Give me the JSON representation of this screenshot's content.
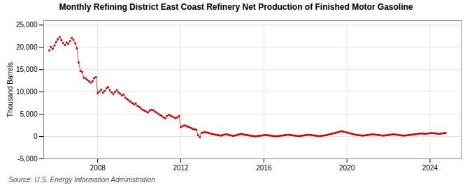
{
  "chart_data": {
    "type": "line",
    "title": "Monthly Refining District East Coast Refinery Net Production of Finished Motor Gasoline",
    "ylabel": "Thousand Barrels",
    "source": "Source: U.S. Energy Information Administration",
    "color": "#cc0000",
    "marker": "square",
    "line_style": "solid",
    "grid": true,
    "xlim": [
      2005.4,
      2025.5
    ],
    "xticks": [
      2008,
      2012,
      2016,
      2020,
      2024
    ],
    "ylim": [
      -5000,
      26000
    ],
    "yticks": [
      {
        "value": -5000,
        "label": "-5,000"
      },
      0,
      {
        "value": 5000,
        "label": "5,000"
      },
      {
        "value": 10000,
        "label": "10,000"
      },
      {
        "value": 15000,
        "label": "15,000"
      },
      {
        "value": 20000,
        "label": "20,000"
      },
      {
        "value": 25000,
        "label": "25,000"
      }
    ],
    "x": [
      2005.67,
      2005.75,
      2005.83,
      2005.92,
      2006.0,
      2006.08,
      2006.17,
      2006.25,
      2006.33,
      2006.42,
      2006.5,
      2006.58,
      2006.67,
      2006.75,
      2006.83,
      2006.92,
      2007.0,
      2007.08,
      2007.17,
      2007.25,
      2007.33,
      2007.42,
      2007.5,
      2007.58,
      2007.67,
      2007.75,
      2007.83,
      2007.92,
      2008.0,
      2008.08,
      2008.17,
      2008.25,
      2008.33,
      2008.42,
      2008.5,
      2008.58,
      2008.67,
      2008.75,
      2008.83,
      2008.92,
      2009.0,
      2009.08,
      2009.17,
      2009.25,
      2009.33,
      2009.42,
      2009.5,
      2009.58,
      2009.67,
      2009.75,
      2009.83,
      2009.92,
      2010.0,
      2010.08,
      2010.17,
      2010.25,
      2010.33,
      2010.42,
      2010.5,
      2010.58,
      2010.67,
      2010.75,
      2010.83,
      2010.92,
      2011.0,
      2011.08,
      2011.17,
      2011.25,
      2011.33,
      2011.42,
      2011.5,
      2011.58,
      2011.67,
      2011.75,
      2011.83,
      2011.92,
      2012.0,
      2012.08,
      2012.17,
      2012.25,
      2012.33,
      2012.42,
      2012.5,
      2012.58,
      2012.67,
      2012.75,
      2012.83,
      2012.92,
      2013.0,
      2013.08,
      2013.17,
      2013.25,
      2013.33,
      2013.42,
      2013.5,
      2013.58,
      2013.67,
      2013.75,
      2013.83,
      2013.92,
      2014.0,
      2014.08,
      2014.17,
      2014.25,
      2014.33,
      2014.42,
      2014.5,
      2014.58,
      2014.67,
      2014.75,
      2014.83,
      2014.92,
      2015.0,
      2015.08,
      2015.17,
      2015.25,
      2015.33,
      2015.42,
      2015.5,
      2015.58,
      2015.67,
      2015.75,
      2015.83,
      2015.92,
      2016.0,
      2016.08,
      2016.17,
      2016.25,
      2016.33,
      2016.42,
      2016.5,
      2016.58,
      2016.67,
      2016.75,
      2016.83,
      2016.92,
      2017.0,
      2017.08,
      2017.17,
      2017.25,
      2017.33,
      2017.42,
      2017.5,
      2017.58,
      2017.67,
      2017.75,
      2017.83,
      2017.92,
      2018.0,
      2018.08,
      2018.17,
      2018.25,
      2018.33,
      2018.42,
      2018.5,
      2018.58,
      2018.67,
      2018.75,
      2018.83,
      2018.92,
      2019.0,
      2019.08,
      2019.17,
      2019.25,
      2019.33,
      2019.42,
      2019.5,
      2019.58,
      2019.67,
      2019.75,
      2019.83,
      2019.92,
      2020.0,
      2020.08,
      2020.17,
      2020.25,
      2020.33,
      2020.42,
      2020.5,
      2020.58,
      2020.67,
      2020.75,
      2020.83,
      2020.92,
      2021.0,
      2021.08,
      2021.17,
      2021.25,
      2021.33,
      2021.42,
      2021.5,
      2021.58,
      2021.67,
      2021.75,
      2021.83,
      2021.92,
      2022.0,
      2022.08,
      2022.17,
      2022.25,
      2022.33,
      2022.42,
      2022.5,
      2022.58,
      2022.67,
      2022.75,
      2022.83,
      2022.92,
      2023.0,
      2023.08,
      2023.17,
      2023.25,
      2023.33,
      2023.42,
      2023.5,
      2023.58,
      2023.67,
      2023.75,
      2023.83,
      2023.92,
      2024.0,
      2024.08,
      2024.17,
      2024.25,
      2024.33,
      2024.42,
      2024.5,
      2024.58,
      2024.67,
      2024.75
    ],
    "values": [
      19300,
      20100,
      19600,
      20400,
      21200,
      21800,
      22300,
      21600,
      21000,
      20500,
      21100,
      20800,
      21400,
      22100,
      21700,
      20900,
      19800,
      16600,
      14700,
      14500,
      13200,
      13000,
      12700,
      12400,
      12100,
      12400,
      13100,
      13300,
      9700,
      10100,
      10500,
      9800,
      10200,
      10800,
      11100,
      10400,
      9900,
      9500,
      10000,
      10400,
      9900,
      9600,
      9200,
      9400,
      8700,
      8400,
      8100,
      7800,
      7500,
      7200,
      7400,
      6900,
      6600,
      6300,
      6000,
      5800,
      5600,
      5400,
      5800,
      6000,
      5900,
      5600,
      5400,
      5100,
      4800,
      4600,
      4300,
      4100,
      4600,
      4900,
      4700,
      4500,
      4300,
      4100,
      4300,
      4600,
      2100,
      2300,
      2500,
      2400,
      2200,
      2100,
      1900,
      1700,
      1600,
      1500,
      300,
      -150,
      800,
      900,
      1000,
      900,
      800,
      700,
      600,
      500,
      400,
      350,
      300,
      200,
      300,
      400,
      500,
      450,
      350,
      250,
      150,
      200,
      300,
      400,
      500,
      600,
      500,
      400,
      350,
      300,
      200,
      150,
      100,
      50,
      100,
      150,
      200,
      250,
      300,
      350,
      300,
      250,
      200,
      150,
      100,
      50,
      100,
      150,
      200,
      250,
      300,
      350,
      400,
      350,
      300,
      250,
      200,
      150,
      100,
      150,
      200,
      250,
      300,
      350,
      400,
      350,
      300,
      250,
      200,
      150,
      100,
      150,
      200,
      250,
      300,
      400,
      500,
      600,
      700,
      800,
      900,
      1000,
      1100,
      1200,
      1100,
      1000,
      900,
      800,
      700,
      600,
      500,
      400,
      350,
      300,
      250,
      200,
      250,
      300,
      350,
      400,
      450,
      500,
      450,
      400,
      350,
      300,
      250,
      200,
      250,
      300,
      350,
      400,
      450,
      500,
      450,
      400,
      350,
      300,
      250,
      200,
      250,
      300,
      350,
      400,
      450,
      500,
      550,
      600,
      650,
      700,
      650,
      600,
      650,
      700,
      750,
      800,
      750,
      700,
      650,
      600,
      650,
      700,
      750,
      800
    ]
  }
}
